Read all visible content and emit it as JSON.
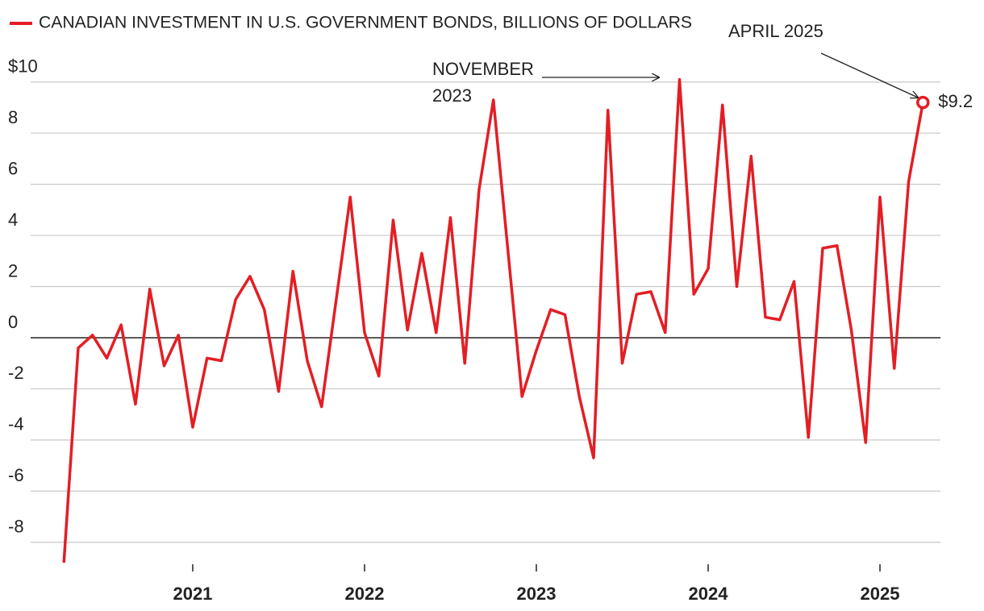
{
  "chart_data": {
    "type": "line",
    "x": [
      "2020-04",
      "2020-05",
      "2020-06",
      "2020-07",
      "2020-08",
      "2020-09",
      "2020-10",
      "2020-11",
      "2020-12",
      "2021-01",
      "2021-02",
      "2021-03",
      "2021-04",
      "2021-05",
      "2021-06",
      "2021-07",
      "2021-08",
      "2021-09",
      "2021-10",
      "2021-11",
      "2021-12",
      "2022-01",
      "2022-02",
      "2022-03",
      "2022-04",
      "2022-05",
      "2022-06",
      "2022-07",
      "2022-08",
      "2022-09",
      "2022-10",
      "2022-11",
      "2022-12",
      "2023-01",
      "2023-02",
      "2023-03",
      "2023-04",
      "2023-05",
      "2023-06",
      "2023-07",
      "2023-08",
      "2023-09",
      "2023-10",
      "2023-11",
      "2023-12",
      "2024-01",
      "2024-02",
      "2024-03",
      "2024-04",
      "2024-05",
      "2024-06",
      "2024-07",
      "2024-08",
      "2024-09",
      "2024-10",
      "2024-11",
      "2024-12",
      "2025-01",
      "2025-02",
      "2025-03",
      "2025-04"
    ],
    "series": [
      {
        "name": "CANADIAN INVESTMENT IN U.S. GOVERNMENT BONDS, BILLIONS OF DOLLARS",
        "color": "#e31e24",
        "values": [
          -8.8,
          -0.4,
          0.1,
          -0.8,
          0.5,
          -2.6,
          1.9,
          -1.1,
          0.1,
          -3.5,
          -0.8,
          -0.9,
          1.5,
          2.4,
          1.1,
          -2.1,
          2.6,
          -0.9,
          -2.7,
          1.4,
          5.5,
          0.2,
          -1.5,
          4.6,
          0.3,
          3.3,
          0.2,
          4.7,
          -1.0,
          5.8,
          9.3,
          3.5,
          -2.3,
          -0.5,
          1.1,
          0.9,
          -2.3,
          -4.7,
          8.9,
          -1.0,
          1.7,
          1.8,
          0.2,
          10.1,
          1.7,
          2.7,
          9.1,
          2.0,
          7.1,
          0.8,
          0.7,
          2.2,
          -3.9,
          3.5,
          3.6,
          0.3,
          -4.1,
          5.5,
          -1.2,
          6.1,
          9.2
        ],
        "value_labels": [
          null,
          null,
          null,
          null,
          null,
          null,
          null,
          null,
          null,
          null,
          null,
          null,
          null,
          null,
          null,
          null,
          null,
          null,
          null,
          null,
          null,
          null,
          null,
          null,
          null,
          null,
          null,
          null,
          null,
          null,
          null,
          null,
          null,
          null,
          null,
          null,
          null,
          null,
          null,
          null,
          null,
          null,
          null,
          null,
          null,
          null,
          null,
          null,
          null,
          null,
          null,
          null,
          null,
          null,
          null,
          null,
          null,
          null,
          null,
          null,
          "$9.2"
        ]
      }
    ],
    "annotations": [
      [
        "NOVEMBER",
        "2023"
      ],
      [
        "APRIL 2025"
      ]
    ],
    "xlim": [
      2020.066,
      2025.352
    ],
    "xticks": [
      2021,
      2022,
      2023,
      2024,
      2025
    ],
    "ylim": [
      -8.86,
      10.56
    ],
    "yticks": [
      {
        "value": 10,
        "label": "$10"
      },
      8,
      6,
      4,
      2,
      0,
      -2,
      -4,
      -6,
      -8
    ],
    "grid": true
  }
}
